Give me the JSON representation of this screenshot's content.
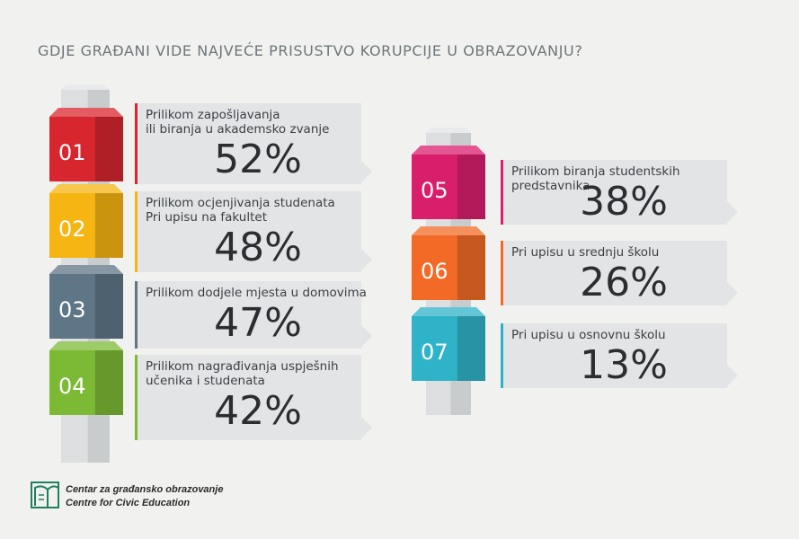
{
  "title": "GDJE GRAĐANI VIDE NAJVEĆE PRISUSTVO KORUPCIJE U OBRAZOVANJU?",
  "chart_data": {
    "type": "bar",
    "title": "GDJE GRAĐANI VIDE NAJVEĆE PRISUSTVO KORUPCIJE U OBRAZOVANJU?",
    "items": [
      {
        "num": "01",
        "label": "Prilikom zapošljavanja\nili biranja u akademsko zvanje",
        "value": 52,
        "display": "52%",
        "color": "#d8262e"
      },
      {
        "num": "02",
        "label": "Prilikom ocjenjivanja studenata\nPri upisu na fakultet",
        "value": 48,
        "display": "48%",
        "color": "#f6b512"
      },
      {
        "num": "03",
        "label": "Prilikom dodjele mjesta u domovima",
        "value": 47,
        "display": "47%",
        "color": "#5f7686"
      },
      {
        "num": "04",
        "label": "Prilikom nagrađivanja uspješnih\nučenika i studenata",
        "value": 42,
        "display": "42%",
        "color": "#7cb935"
      },
      {
        "num": "05",
        "label": "Prilikom biranja studentskih predstavnika",
        "value": 38,
        "display": "38%",
        "color": "#d91e6c"
      },
      {
        "num": "06",
        "label": "Pri upisu u srednju školu",
        "value": 26,
        "display": "26%",
        "color": "#f26a25"
      },
      {
        "num": "07",
        "label": "Pri upisu u osnovnu školu",
        "value": 13,
        "display": "13%",
        "color": "#2fb3c8"
      }
    ]
  },
  "logo": {
    "line1": "Centar za građansko obrazovanje",
    "line2": "Centre for Civic Education",
    "icon": "civic-education-logo-icon"
  }
}
